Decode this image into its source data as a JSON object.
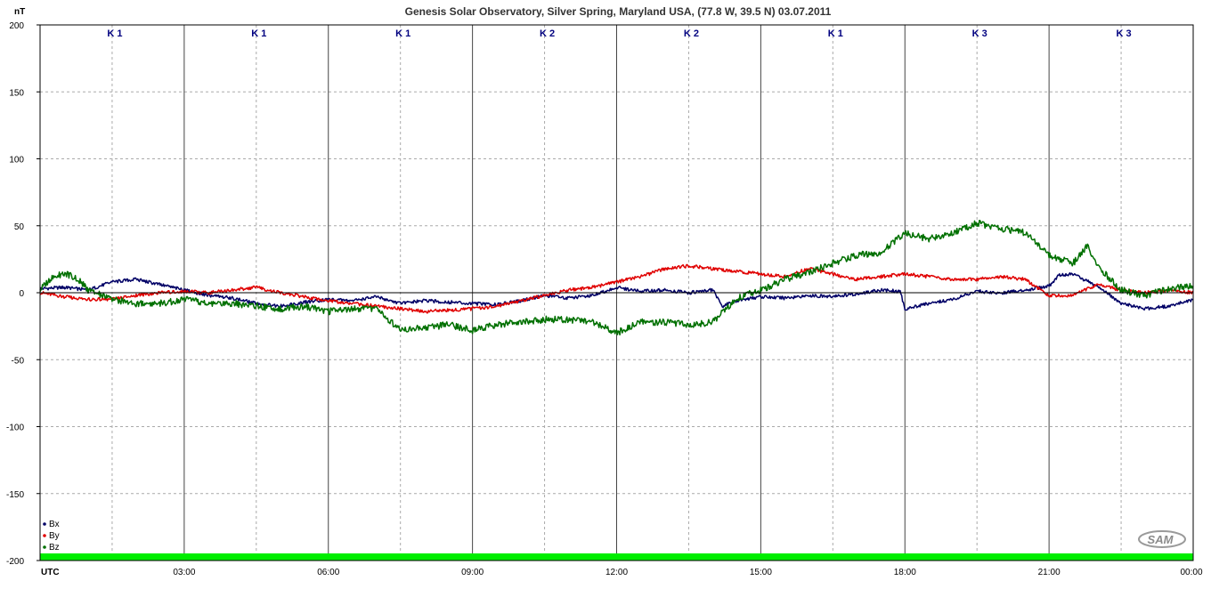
{
  "chart_data": {
    "type": "line",
    "title": "Genesis Solar Observatory, Silver Spring, Maryland USA, (77.8 W, 39.5 N)  03.07.2011",
    "ylabel": "nT",
    "xlabel": "UTC",
    "ylim": [
      -200,
      200
    ],
    "y_ticks": [
      200,
      150,
      100,
      50,
      0,
      -50,
      -100,
      -150,
      -200
    ],
    "y_tick_labels": [
      "200",
      "150",
      "100",
      "50",
      "0",
      "-50",
      "-100",
      "-150",
      "-200"
    ],
    "x_range_hours": [
      0,
      24
    ],
    "x_tick_labels": [
      "03:00",
      "06:00",
      "09:00",
      "12:00",
      "15:00",
      "18:00",
      "21:00",
      "00:00"
    ],
    "grid": true,
    "k_index": {
      "labels": [
        "K 1",
        "K 1",
        "K 1",
        "K 2",
        "K 2",
        "K 1",
        "K 3",
        "K 3"
      ],
      "values": [
        1,
        1,
        1,
        2,
        2,
        1,
        3,
        3
      ]
    },
    "legend": {
      "position": "bottom-left",
      "entries": [
        "Bx",
        "By",
        "Bz"
      ]
    },
    "logo_text": "SAM",
    "colors": {
      "Bx": "#000066",
      "By": "#e00000",
      "Bz": "#007000",
      "k_label": "#000080",
      "status_bar": "#00ee00",
      "grid": "#aaaaaa",
      "axis": "#000000"
    },
    "series": [
      {
        "name": "Bx",
        "x": [
          0,
          0.5,
          1.0,
          1.5,
          2.0,
          2.5,
          3.0,
          3.5,
          4.0,
          4.5,
          5.0,
          5.5,
          6.0,
          6.5,
          7.0,
          7.5,
          8.0,
          8.5,
          9.0,
          9.5,
          10.0,
          10.5,
          11.0,
          11.5,
          12.0,
          12.5,
          13.0,
          13.5,
          14.0,
          14.2,
          14.5,
          15.0,
          15.5,
          16.0,
          16.5,
          17.0,
          17.5,
          17.9,
          18.0,
          18.5,
          19.0,
          19.5,
          20.0,
          20.5,
          21.0,
          21.2,
          21.5,
          22.0,
          22.5,
          23.0,
          23.5,
          24.0
        ],
        "values": [
          3,
          4,
          2,
          8,
          10,
          6,
          2,
          -2,
          -4,
          -8,
          -10,
          -7,
          -5,
          -6,
          -3,
          -8,
          -6,
          -7,
          -8,
          -9,
          -6,
          -2,
          -4,
          -2,
          4,
          1,
          2,
          0,
          2,
          -10,
          -6,
          -3,
          -4,
          -2,
          -3,
          -1,
          2,
          1,
          -12,
          -8,
          -5,
          1,
          0,
          2,
          5,
          13,
          14,
          5,
          -8,
          -12,
          -10,
          -5
        ]
      },
      {
        "name": "By",
        "x": [
          0,
          0.5,
          1.0,
          1.5,
          2.0,
          2.5,
          3.0,
          3.5,
          4.0,
          4.5,
          5.0,
          5.5,
          6.0,
          6.5,
          7.0,
          7.5,
          8.0,
          8.5,
          9.0,
          9.5,
          10.0,
          10.5,
          11.0,
          11.5,
          12.0,
          12.5,
          13.0,
          13.5,
          14.0,
          14.5,
          15.0,
          15.5,
          16.0,
          16.5,
          17.0,
          17.5,
          18.0,
          18.5,
          19.0,
          19.5,
          20.0,
          20.5,
          21.0,
          21.5,
          22.0,
          22.5,
          23.0,
          23.5,
          24.0
        ],
        "values": [
          0,
          -3,
          -5,
          -5,
          -2,
          0,
          1,
          0,
          2,
          4,
          0,
          -3,
          -6,
          -8,
          -10,
          -12,
          -14,
          -13,
          -12,
          -10,
          -6,
          -2,
          2,
          4,
          8,
          12,
          18,
          20,
          18,
          16,
          14,
          12,
          18,
          14,
          10,
          12,
          14,
          12,
          10,
          10,
          12,
          10,
          -2,
          -2,
          6,
          2,
          0,
          2,
          0
        ]
      },
      {
        "name": "Bz",
        "x": [
          0,
          0.2,
          0.5,
          0.8,
          1.0,
          1.5,
          2.0,
          2.5,
          3.0,
          3.5,
          4.0,
          4.5,
          5.0,
          5.5,
          6.0,
          6.5,
          7.0,
          7.5,
          8.0,
          8.5,
          9.0,
          9.5,
          10.0,
          10.5,
          11.0,
          11.5,
          12.0,
          12.5,
          13.0,
          13.5,
          14.0,
          14.5,
          15.0,
          15.5,
          16.0,
          16.5,
          17.0,
          17.5,
          18.0,
          18.5,
          19.0,
          19.5,
          20.0,
          20.5,
          21.0,
          21.5,
          21.8,
          22.0,
          22.5,
          23.0,
          23.5,
          24.0
        ],
        "values": [
          2,
          10,
          15,
          10,
          2,
          -5,
          -8,
          -8,
          -5,
          -8,
          -8,
          -10,
          -12,
          -10,
          -14,
          -12,
          -12,
          -28,
          -26,
          -24,
          -28,
          -24,
          -22,
          -20,
          -20,
          -22,
          -30,
          -22,
          -22,
          -24,
          -22,
          -4,
          2,
          10,
          15,
          22,
          28,
          30,
          45,
          40,
          45,
          52,
          48,
          45,
          28,
          22,
          35,
          20,
          2,
          -2,
          3,
          5
        ]
      }
    ]
  }
}
